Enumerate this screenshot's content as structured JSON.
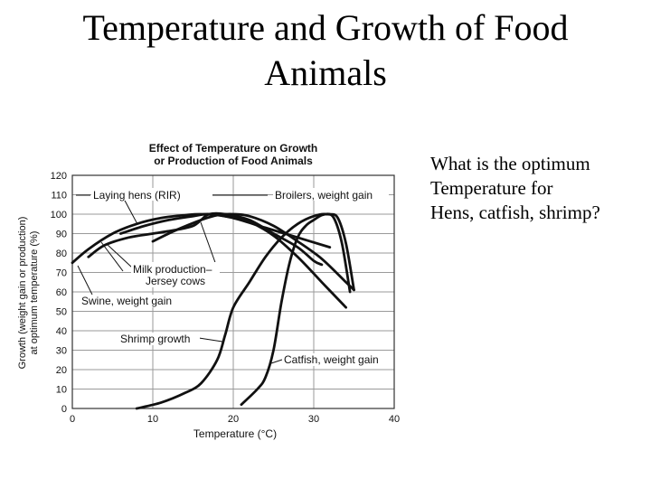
{
  "slide": {
    "title_line1": "Temperature and Growth of Food",
    "title_line2": "Animals",
    "question_lines": [
      "What is the optimum",
      "Temperature for",
      "Hens, catfish, shrimp?"
    ]
  },
  "chart_data": {
    "type": "line",
    "title_line1": "Effect of Temperature on Growth",
    "title_line2": "or Production of Food Animals",
    "xlabel": "Temperature (°C)",
    "ylabel_line1": "Growth (weight gain or production)",
    "ylabel_line2": "at optimum temperature (%)",
    "xlim": [
      0,
      40
    ],
    "ylim": [
      0,
      120
    ],
    "x_ticks": [
      0,
      10,
      20,
      30,
      40
    ],
    "y_ticks": [
      0,
      10,
      20,
      30,
      40,
      50,
      60,
      70,
      80,
      90,
      100,
      110,
      120
    ],
    "grid": true,
    "series": [
      {
        "name": "Laying hens (RIR)",
        "points": [
          [
            6,
            90
          ],
          [
            9,
            94
          ],
          [
            12,
            97
          ],
          [
            15,
            99
          ],
          [
            17,
            100
          ],
          [
            20,
            98
          ],
          [
            24,
            93
          ],
          [
            28,
            88
          ],
          [
            32,
            83
          ]
        ]
      },
      {
        "name": "Broilers, weight gain",
        "points": [
          [
            10,
            86
          ],
          [
            13,
            92
          ],
          [
            16,
            97
          ],
          [
            18,
            99.5
          ],
          [
            20,
            100
          ],
          [
            22,
            99
          ],
          [
            25,
            94
          ],
          [
            28,
            86
          ],
          [
            31,
            77
          ],
          [
            34,
            65
          ],
          [
            35,
            61
          ]
        ]
      },
      {
        "name": "Milk production–Jersey cows",
        "points": [
          [
            2,
            78
          ],
          [
            4,
            84
          ],
          [
            7,
            88
          ],
          [
            10,
            90
          ],
          [
            13,
            92
          ],
          [
            15,
            94
          ],
          [
            16,
            97
          ],
          [
            17,
            100
          ],
          [
            19,
            100
          ],
          [
            22,
            97
          ],
          [
            25,
            90
          ],
          [
            28,
            83
          ],
          [
            30,
            76
          ],
          [
            31,
            74
          ]
        ]
      },
      {
        "name": "Swine, weight gain",
        "points": [
          [
            0,
            75
          ],
          [
            2,
            82
          ],
          [
            5,
            90
          ],
          [
            8,
            95
          ],
          [
            11,
            98
          ],
          [
            14,
            99.5
          ],
          [
            16,
            100
          ],
          [
            19,
            99
          ],
          [
            22,
            96
          ],
          [
            25,
            89
          ],
          [
            28,
            78
          ],
          [
            31,
            65
          ],
          [
            34,
            52
          ]
        ]
      },
      {
        "name": "Shrimp growth",
        "points": [
          [
            8,
            0
          ],
          [
            11,
            3
          ],
          [
            14,
            8
          ],
          [
            16,
            13
          ],
          [
            18,
            25
          ],
          [
            19,
            38
          ],
          [
            20,
            52
          ],
          [
            22,
            65
          ],
          [
            24,
            78
          ],
          [
            26,
            88
          ],
          [
            28,
            95
          ],
          [
            30,
            99
          ],
          [
            31.5,
            100
          ],
          [
            32.5,
            98
          ],
          [
            33.5,
            85
          ],
          [
            34.5,
            60
          ]
        ]
      },
      {
        "name": "Catfish, weight gain",
        "points": [
          [
            21,
            2
          ],
          [
            23,
            10
          ],
          [
            24,
            16
          ],
          [
            25,
            30
          ],
          [
            26,
            55
          ],
          [
            27,
            75
          ],
          [
            28,
            88
          ],
          [
            29,
            94
          ],
          [
            30,
            97
          ],
          [
            31,
            99.5
          ],
          [
            32,
            100
          ],
          [
            33,
            98
          ],
          [
            34,
            85
          ],
          [
            35,
            61
          ]
        ]
      }
    ],
    "annotations": [
      "Laying hens (RIR)",
      "Broilers, weight gain",
      "Milk production–",
      "Jersey cows",
      "Swine, weight gain",
      "Shrimp growth",
      "Catfish, weight gain"
    ]
  }
}
